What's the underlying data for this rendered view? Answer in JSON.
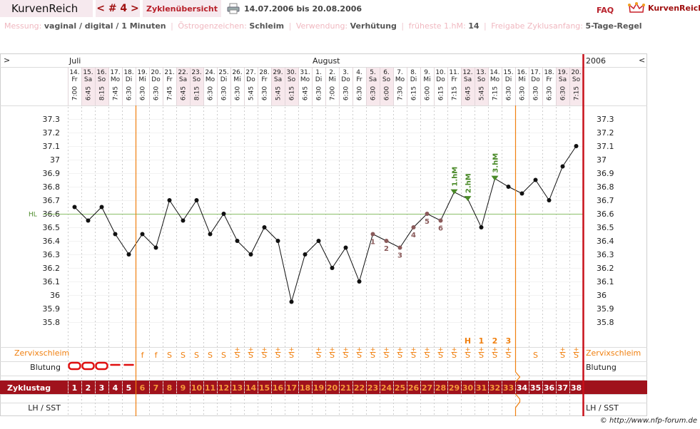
{
  "header": {
    "logo": "KurvenReich",
    "cycle_nav": "< # 4 >",
    "overview_label": "Zyklenübersicht",
    "date_range": "14.07.2006 bis 20.08.2006",
    "faq": "FAQ",
    "brand": "KurvenReich",
    "icons": {
      "print": "printer-icon",
      "brand": "crown-icon"
    }
  },
  "info": {
    "measure_label": "Messung:",
    "measure_value": "vaginal / digital / 1 Minuten",
    "estrogen_label": "Östrogenzeichen:",
    "estrogen_value": "Schleim",
    "usage_label": "Verwendung:",
    "usage_value": "Verhütung",
    "earliest_label": "früheste 1.hM:",
    "earliest_value": "14",
    "release_label": "Freigabe Zyklusanfang:",
    "release_value": "5-Tage-Regel"
  },
  "nav": {
    "left": ">",
    "right": "<",
    "year": "2006"
  },
  "chart_data": {
    "type": "line",
    "months": [
      {
        "label": "Juli",
        "start_index": 0
      },
      {
        "label": "August",
        "start_index": 18
      }
    ],
    "days": [
      {
        "date": "14.",
        "dow": "Fr",
        "time": "7:00",
        "temp": 36.65,
        "cycle_day": 1,
        "cervix": "",
        "bleeding": "strong"
      },
      {
        "date": "15.",
        "dow": "Sa",
        "time": "6:45",
        "temp": 36.55,
        "cycle_day": 2,
        "cervix": "",
        "bleeding": "strong"
      },
      {
        "date": "16.",
        "dow": "So",
        "time": "8:15",
        "temp": 36.65,
        "cycle_day": 3,
        "cervix": "",
        "bleeding": "strong"
      },
      {
        "date": "17.",
        "dow": "Mo",
        "time": "7:45",
        "temp": 36.45,
        "cycle_day": 4,
        "cervix": "",
        "bleeding": "light"
      },
      {
        "date": "18.",
        "dow": "Di",
        "time": "6:30",
        "temp": 36.3,
        "cycle_day": 5,
        "cervix": "",
        "bleeding": "light"
      },
      {
        "date": "19.",
        "dow": "Mi",
        "time": "6:30",
        "temp": 36.45,
        "cycle_day": 6,
        "cervix": "f",
        "bleeding": ""
      },
      {
        "date": "20.",
        "dow": "Do",
        "time": "6:30",
        "temp": 36.35,
        "cycle_day": 7,
        "cervix": "f",
        "bleeding": ""
      },
      {
        "date": "21.",
        "dow": "Fr",
        "time": "7:45",
        "temp": 36.7,
        "cycle_day": 8,
        "cervix": "S",
        "bleeding": ""
      },
      {
        "date": "22.",
        "dow": "Sa",
        "time": "6:45",
        "temp": 36.55,
        "cycle_day": 9,
        "cervix": "S",
        "bleeding": ""
      },
      {
        "date": "23.",
        "dow": "So",
        "time": "8:15",
        "temp": 36.7,
        "cycle_day": 10,
        "cervix": "S",
        "bleeding": ""
      },
      {
        "date": "24.",
        "dow": "Mo",
        "time": "6:30",
        "temp": 36.45,
        "cycle_day": 11,
        "cervix": "S",
        "bleeding": ""
      },
      {
        "date": "25.",
        "dow": "Di",
        "time": "6:30",
        "temp": 36.6,
        "cycle_day": 12,
        "cervix": "S",
        "bleeding": ""
      },
      {
        "date": "26.",
        "dow": "Mi",
        "time": "6:30",
        "temp": 36.4,
        "cycle_day": 13,
        "cervix": "S+",
        "bleeding": ""
      },
      {
        "date": "27.",
        "dow": "Do",
        "time": "5:45",
        "temp": 36.3,
        "cycle_day": 14,
        "cervix": "S+",
        "bleeding": ""
      },
      {
        "date": "28.",
        "dow": "Fr",
        "time": "6:30",
        "temp": 36.5,
        "cycle_day": 15,
        "cervix": "S+",
        "bleeding": ""
      },
      {
        "date": "29.",
        "dow": "Sa",
        "time": "5:45",
        "temp": 36.4,
        "cycle_day": 16,
        "cervix": "S+",
        "bleeding": ""
      },
      {
        "date": "30.",
        "dow": "So",
        "time": "6:15",
        "temp": 35.95,
        "cycle_day": 17,
        "cervix": "S+",
        "bleeding": ""
      },
      {
        "date": "31.",
        "dow": "Mo",
        "time": "6:45",
        "temp": 36.3,
        "cycle_day": 18,
        "cervix": "",
        "bleeding": ""
      },
      {
        "date": "1.",
        "dow": "Di",
        "time": "6:30",
        "temp": 36.4,
        "cycle_day": 19,
        "cervix": "S+",
        "bleeding": ""
      },
      {
        "date": "2.",
        "dow": "Mi",
        "time": "7:00",
        "temp": 36.2,
        "cycle_day": 20,
        "cervix": "S+",
        "bleeding": ""
      },
      {
        "date": "3.",
        "dow": "Do",
        "time": "6:30",
        "temp": 36.35,
        "cycle_day": 21,
        "cervix": "S+",
        "bleeding": ""
      },
      {
        "date": "4.",
        "dow": "Fr",
        "time": "6:30",
        "temp": 36.1,
        "cycle_day": 22,
        "cervix": "S+",
        "bleeding": ""
      },
      {
        "date": "5.",
        "dow": "Sa",
        "time": "6:30",
        "temp": 36.45,
        "cycle_day": 23,
        "cervix": "S+",
        "bleeding": "",
        "low_number": "1"
      },
      {
        "date": "6.",
        "dow": "So",
        "time": "6:00",
        "temp": 36.4,
        "cycle_day": 24,
        "cervix": "S+",
        "bleeding": "",
        "low_number": "2"
      },
      {
        "date": "7.",
        "dow": "Mo",
        "time": "7:30",
        "temp": 36.35,
        "cycle_day": 25,
        "cervix": "S+",
        "bleeding": "",
        "low_number": "3"
      },
      {
        "date": "8.",
        "dow": "Di",
        "time": "6:15",
        "temp": 36.5,
        "cycle_day": 26,
        "cervix": "S+",
        "bleeding": "",
        "low_number": "4"
      },
      {
        "date": "9.",
        "dow": "Mi",
        "time": "6:00",
        "temp": 36.6,
        "cycle_day": 27,
        "cervix": "S+",
        "bleeding": "",
        "low_number": "5"
      },
      {
        "date": "10.",
        "dow": "Do",
        "time": "6:15",
        "temp": 36.55,
        "cycle_day": 28,
        "cervix": "S+",
        "bleeding": "",
        "low_number": "6"
      },
      {
        "date": "11.",
        "dow": "Fr",
        "time": "7:15",
        "temp": 36.76,
        "cycle_day": 29,
        "cervix": "S+",
        "bleeding": "",
        "high_label": "1.hM"
      },
      {
        "date": "12.",
        "dow": "Sa",
        "time": "6:45",
        "temp": 36.71,
        "cycle_day": 30,
        "cervix": "S+",
        "bleeding": "",
        "high_label": "2.hM",
        "peak": "H"
      },
      {
        "date": "13.",
        "dow": "So",
        "time": "5:45",
        "temp": 36.5,
        "cycle_day": 31,
        "cervix": "S+",
        "bleeding": "",
        "peak": "1"
      },
      {
        "date": "14.",
        "dow": "Mo",
        "time": "7:15",
        "temp": 36.86,
        "cycle_day": 32,
        "cervix": "S+",
        "bleeding": "",
        "high_label": "3.hM",
        "peak": "2"
      },
      {
        "date": "15.",
        "dow": "Di",
        "time": "6:30",
        "temp": 36.8,
        "cycle_day": 33,
        "cervix": "S+",
        "bleeding": "",
        "peak": "3"
      },
      {
        "date": "16.",
        "dow": "Mi",
        "time": "6:30",
        "temp": 36.75,
        "cycle_day": 34,
        "cervix": "",
        "bleeding": ""
      },
      {
        "date": "17.",
        "dow": "Do",
        "time": "6:30",
        "temp": 36.85,
        "cycle_day": 35,
        "cervix": "S",
        "bleeding": ""
      },
      {
        "date": "18.",
        "dow": "Fr",
        "time": "6:30",
        "temp": 36.7,
        "cycle_day": 36,
        "cervix": "",
        "bleeding": ""
      },
      {
        "date": "19.",
        "dow": "Sa",
        "time": "6:30",
        "temp": 36.95,
        "cycle_day": 37,
        "cervix": "S+",
        "bleeding": ""
      },
      {
        "date": "20.",
        "dow": "So",
        "time": "7:15",
        "temp": 37.1,
        "cycle_day": 38,
        "cervix": "S+",
        "bleeding": ""
      }
    ],
    "yticks": [
      "37.3",
      "37.2",
      "37.1",
      "37",
      "36.9",
      "36.8",
      "36.7",
      "36.6",
      "36.5",
      "36.4",
      "36.3",
      "36.2",
      "36.1",
      "36",
      "35.9",
      "35.8"
    ],
    "ylim": [
      35.8,
      37.3
    ],
    "hl": {
      "label": "HL",
      "value": 36.6
    },
    "rows": {
      "cervix": "Zervixschleim",
      "bleeding": "Blutung",
      "cycle": "Zyklustag",
      "lh": "LH / SST"
    },
    "vlines_after_index": [
      4,
      32
    ],
    "colors": {
      "accent": "#a0121c",
      "orange": "#f08010",
      "green": "#4a8a28",
      "hl": "#8bbf6a",
      "dot": "#111111",
      "low": "#8a5a5a",
      "weekend": "#f7e8ec"
    }
  },
  "copyright": "© http://www.nfp-forum.de"
}
